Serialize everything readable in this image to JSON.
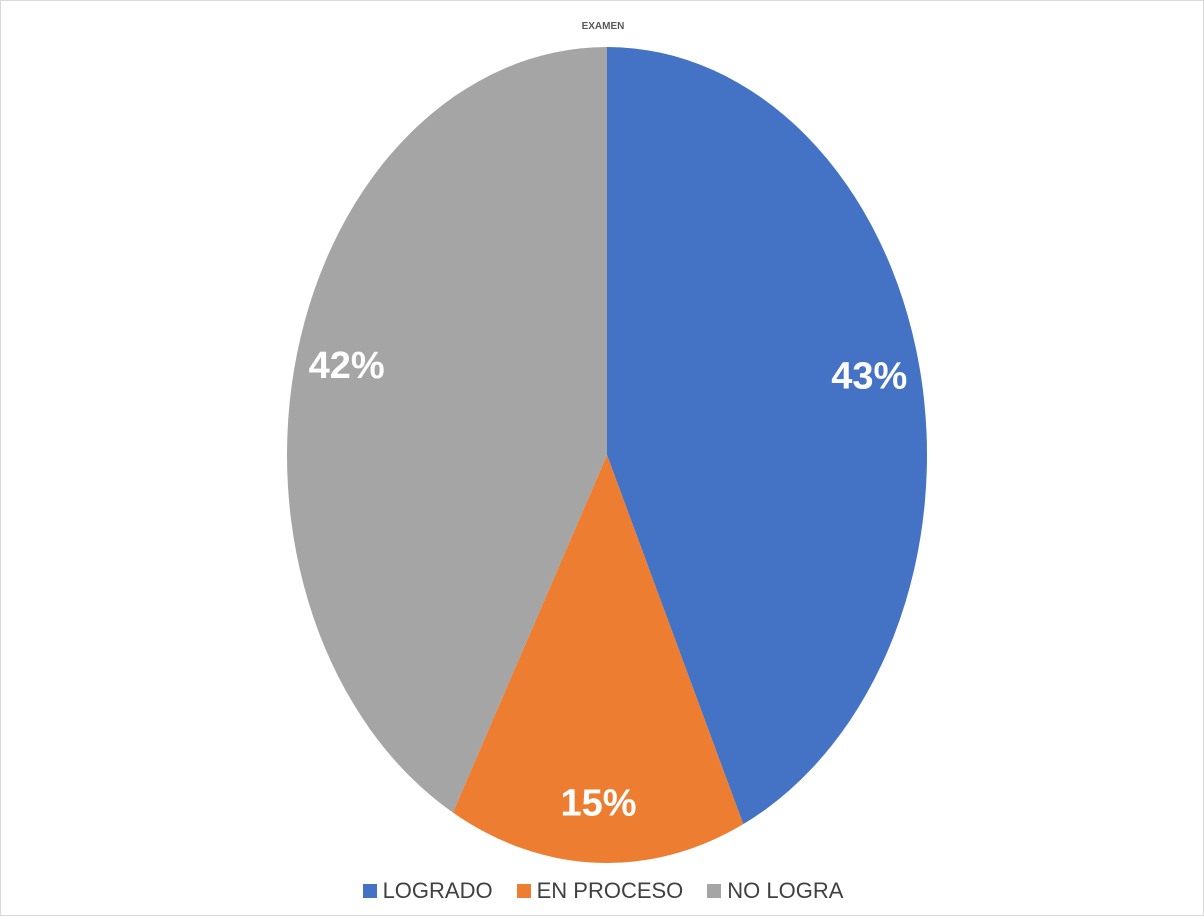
{
  "chart_data": {
    "type": "pie",
    "title": "EXAMEN",
    "categories": [
      "LOGRADO",
      "EN PROCESO",
      "NO LOGRA"
    ],
    "values": [
      43,
      15,
      42
    ],
    "data_labels": [
      "43%",
      "15%",
      "42%"
    ],
    "colors": [
      "#4472C4",
      "#ED7D31",
      "#A5A5A5"
    ],
    "legend_position": "bottom",
    "start_angle": "top, clockwise"
  }
}
